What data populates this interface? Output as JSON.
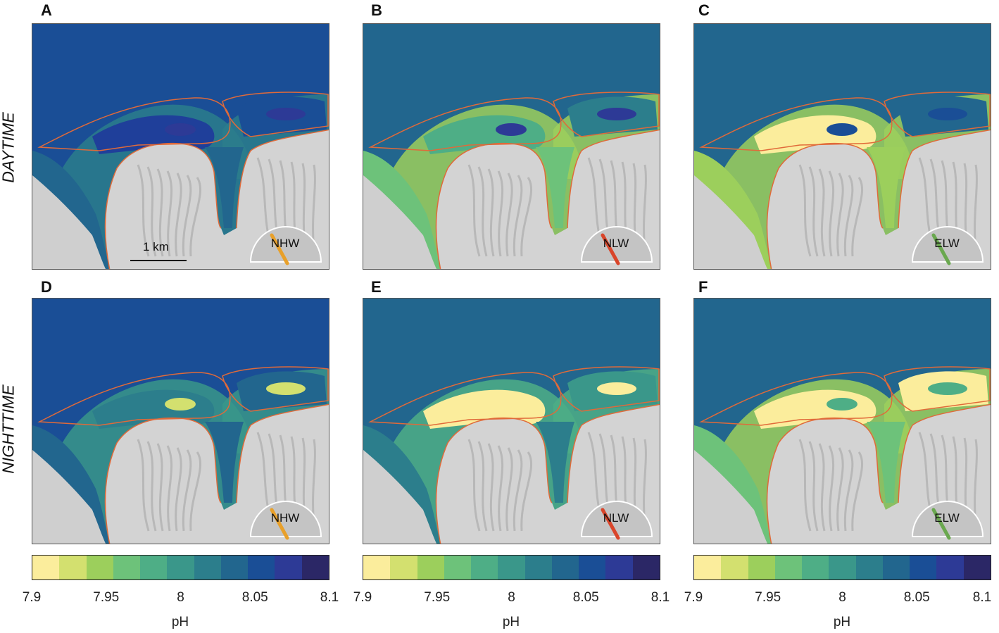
{
  "row_labels": {
    "day": "DAYTIME",
    "night": "NIGHTTIME"
  },
  "scale_bar": {
    "label": "1 km"
  },
  "colorbar": {
    "colors": [
      "#fbed9c",
      "#d3e06f",
      "#9ccf5c",
      "#6dc27a",
      "#4eae86",
      "#3a978a",
      "#2c7e8c",
      "#22668e",
      "#1a4e96",
      "#2d3a96",
      "#2b2766"
    ],
    "ticks": [
      "7.9",
      "7.95",
      "8",
      "8.05",
      "8.1"
    ],
    "label": "pH"
  },
  "panels": [
    {
      "letter": "A",
      "tide": "NHW",
      "arrow_color": "#e8a02a",
      "water": "#1a4e96",
      "bay1": "#1f3f9a",
      "bay2": "#22668e",
      "bay3": "#1a4e96",
      "shore": "#2c7e8c",
      "pocket": "#2d3a96"
    },
    {
      "letter": "B",
      "tide": "NLW",
      "arrow_color": "#d9452a",
      "water": "#22668e",
      "bay1": "#4eae86",
      "bay2": "#6dc27a",
      "bay3": "#2c7e8c",
      "shore": "#9ccf5c",
      "pocket": "#2d3a96"
    },
    {
      "letter": "C",
      "tide": "ELW",
      "arrow_color": "#6aa84f",
      "water": "#22668e",
      "bay1": "#fbed9c",
      "bay2": "#9ccf5c",
      "bay3": "#22668e",
      "shore": "#9ccf5c",
      "pocket": "#1a4e96"
    },
    {
      "letter": "D",
      "tide": "NHW",
      "arrow_color": "#e8a02a",
      "water": "#1a4e96",
      "bay1": "#2c7e8c",
      "bay2": "#22668e",
      "bay3": "#22668e",
      "shore": "#3a978a",
      "pocket": "#d3e06f"
    },
    {
      "letter": "E",
      "tide": "NLW",
      "arrow_color": "#d9452a",
      "water": "#22668e",
      "bay1": "#fbed9c",
      "bay2": "#2c7e8c",
      "bay3": "#3a978a",
      "shore": "#4eae86",
      "pocket": "#fbed9c"
    },
    {
      "letter": "F",
      "tide": "ELW",
      "arrow_color": "#6aa84f",
      "water": "#22668e",
      "bay1": "#fbed9c",
      "bay2": "#6dc27a",
      "bay3": "#fbed9c",
      "shore": "#9ccf5c",
      "pocket": "#4eae86"
    }
  ]
}
